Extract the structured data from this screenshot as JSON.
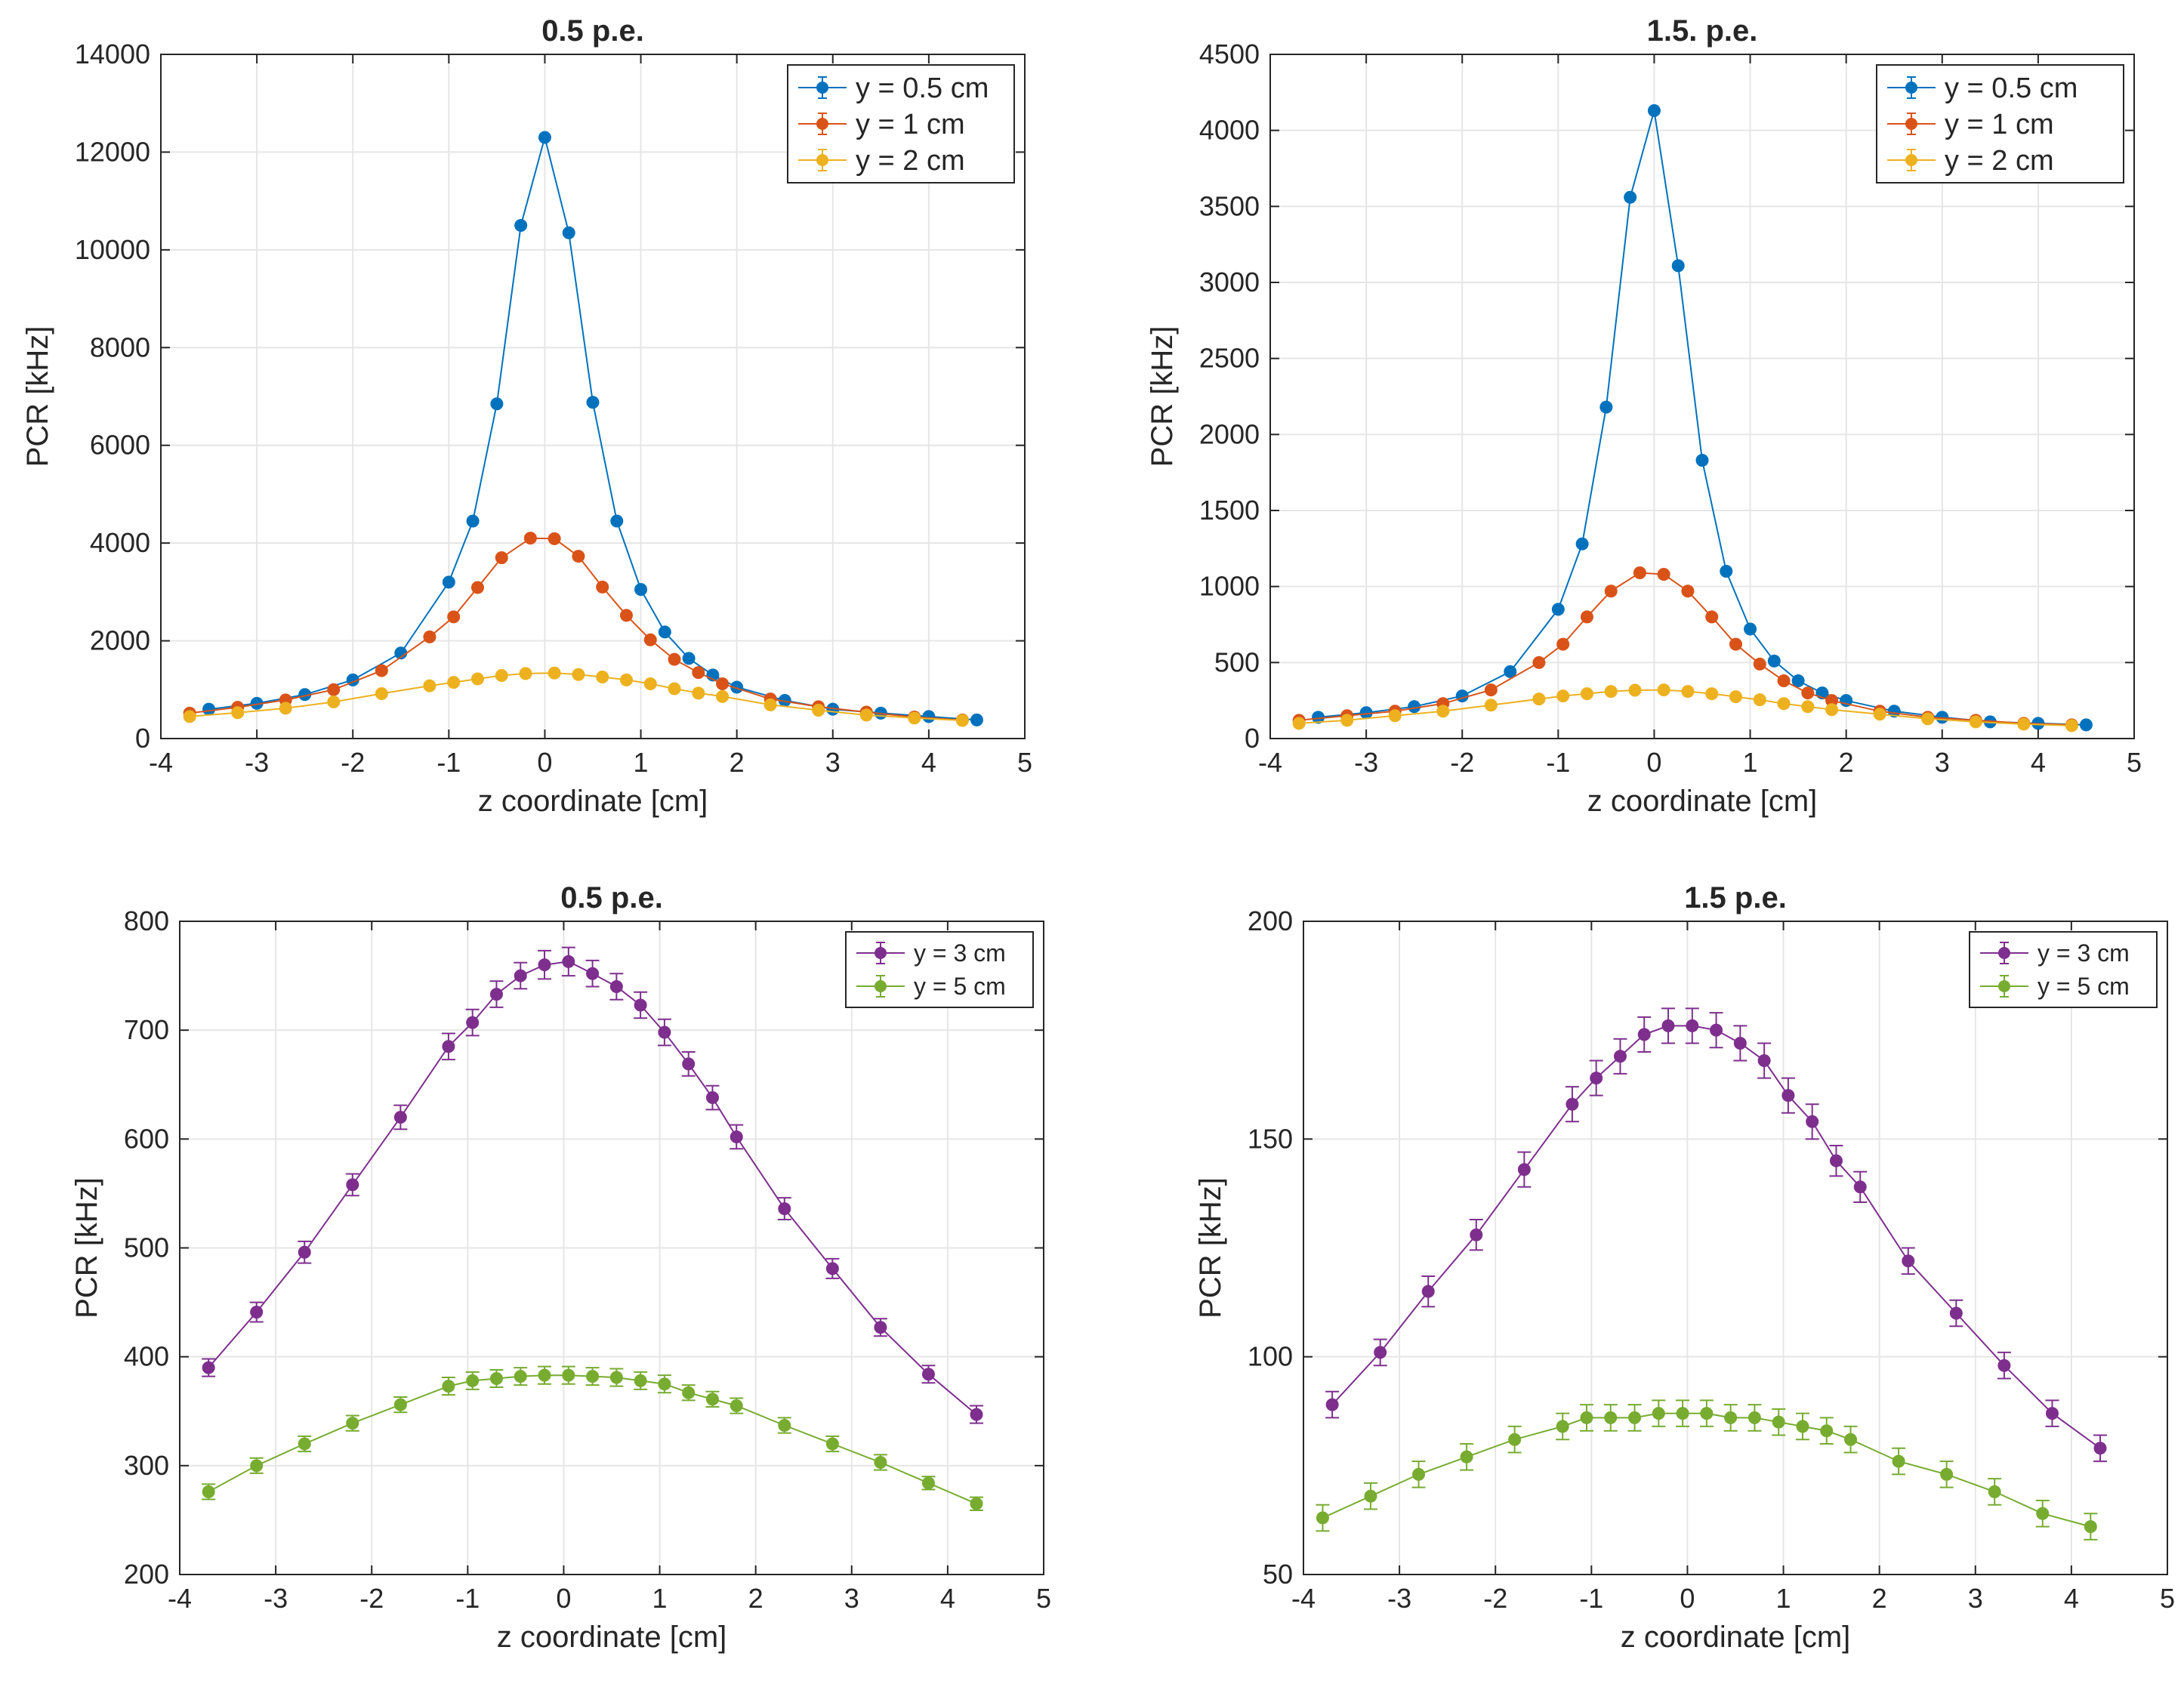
{
  "colors": {
    "blue": "#0072BD",
    "orange": "#D95319",
    "yellow": "#EDB120",
    "purple": "#7E2F8E",
    "green": "#77AC30"
  },
  "chart_data": [
    {
      "type": "line",
      "title": "0.5 p.e.",
      "xlabel": "z coordinate [cm]",
      "ylabel": "PCR [kHz]",
      "xlim": [
        -4,
        5
      ],
      "ylim": [
        0,
        14000
      ],
      "xticks": [
        -4,
        -3,
        -2,
        -1,
        0,
        1,
        2,
        3,
        4,
        5
      ],
      "yticks": [
        0,
        2000,
        4000,
        6000,
        8000,
        10000,
        12000,
        14000
      ],
      "grid": true,
      "legend_position": "top-right",
      "series": [
        {
          "name": "y = 0.5 cm",
          "color": "#0072BD",
          "x": [
            -3.5,
            -3.0,
            -2.5,
            -2.0,
            -1.5,
            -1.0,
            -0.75,
            -0.5,
            -0.25,
            0.0,
            0.25,
            0.5,
            0.75,
            1.0,
            1.25,
            1.5,
            1.75,
            2.0,
            2.5,
            3.0,
            3.5,
            4.0,
            4.5
          ],
          "y": [
            600,
            720,
            900,
            1200,
            1750,
            3200,
            4450,
            6850,
            10500,
            12300,
            10350,
            6880,
            4450,
            3050,
            2180,
            1640,
            1300,
            1050,
            780,
            600,
            520,
            450,
            380
          ],
          "err": []
        },
        {
          "name": "y = 1 cm",
          "color": "#D95319",
          "x": [
            -3.7,
            -3.2,
            -2.7,
            -2.2,
            -1.7,
            -1.2,
            -0.95,
            -0.7,
            -0.45,
            -0.15,
            0.1,
            0.35,
            0.6,
            0.85,
            1.1,
            1.35,
            1.6,
            1.85,
            2.35,
            2.85,
            3.35,
            3.85,
            4.35
          ],
          "y": [
            520,
            640,
            790,
            1000,
            1390,
            2080,
            2490,
            3090,
            3700,
            4100,
            4090,
            3730,
            3100,
            2520,
            2020,
            1620,
            1350,
            1120,
            810,
            650,
            540,
            440,
            380
          ],
          "err": []
        },
        {
          "name": "y = 2 cm",
          "color": "#EDB120",
          "x": [
            -3.7,
            -3.2,
            -2.7,
            -2.2,
            -1.7,
            -1.2,
            -0.95,
            -0.7,
            -0.45,
            -0.2,
            0.1,
            0.35,
            0.6,
            0.85,
            1.1,
            1.35,
            1.6,
            1.85,
            2.35,
            2.85,
            3.35,
            3.85,
            4.35
          ],
          "y": [
            450,
            530,
            620,
            750,
            920,
            1080,
            1150,
            1220,
            1290,
            1330,
            1340,
            1310,
            1260,
            1200,
            1120,
            1020,
            930,
            860,
            690,
            580,
            480,
            420,
            370
          ],
          "err": []
        }
      ]
    },
    {
      "type": "line",
      "title": "1.5. p.e.",
      "xlabel": "z coordinate [cm]",
      "ylabel": "PCR [kHz]",
      "xlim": [
        -4,
        5
      ],
      "ylim": [
        0,
        4500
      ],
      "xticks": [
        -4,
        -3,
        -2,
        -1,
        0,
        1,
        2,
        3,
        4,
        5
      ],
      "yticks": [
        0,
        500,
        1000,
        1500,
        2000,
        2500,
        3000,
        3500,
        4000,
        4500
      ],
      "grid": true,
      "legend_position": "top-right",
      "series": [
        {
          "name": "y = 0.5 cm",
          "color": "#0072BD",
          "x": [
            -3.5,
            -3.0,
            -2.5,
            -2.0,
            -1.5,
            -1.0,
            -0.75,
            -0.5,
            -0.25,
            0.0,
            0.25,
            0.5,
            0.75,
            1.0,
            1.25,
            1.5,
            1.75,
            2.0,
            2.5,
            3.0,
            3.5,
            4.0,
            4.5
          ],
          "y": [
            140,
            170,
            210,
            280,
            440,
            850,
            1280,
            2180,
            3560,
            4130,
            3110,
            1830,
            1100,
            720,
            510,
            380,
            300,
            250,
            180,
            140,
            110,
            100,
            90
          ],
          "err": []
        },
        {
          "name": "y = 1 cm",
          "color": "#D95319",
          "x": [
            -3.7,
            -3.2,
            -2.7,
            -2.2,
            -1.7,
            -1.2,
            -0.95,
            -0.7,
            -0.45,
            -0.15,
            0.1,
            0.35,
            0.6,
            0.85,
            1.1,
            1.35,
            1.6,
            1.85,
            2.35,
            2.85,
            3.35,
            3.85,
            4.35
          ],
          "y": [
            120,
            150,
            180,
            230,
            320,
            500,
            620,
            800,
            970,
            1090,
            1080,
            970,
            800,
            620,
            490,
            380,
            300,
            250,
            180,
            140,
            120,
            100,
            90
          ],
          "err": []
        },
        {
          "name": "y = 2 cm",
          "color": "#EDB120",
          "x": [
            -3.7,
            -3.2,
            -2.7,
            -2.2,
            -1.7,
            -1.2,
            -0.95,
            -0.7,
            -0.45,
            -0.2,
            0.1,
            0.35,
            0.6,
            0.85,
            1.1,
            1.35,
            1.6,
            1.85,
            2.35,
            2.85,
            3.35,
            3.85,
            4.35
          ],
          "y": [
            100,
            120,
            150,
            180,
            220,
            260,
            280,
            295,
            310,
            318,
            320,
            310,
            295,
            275,
            255,
            230,
            210,
            190,
            160,
            130,
            110,
            95,
            85
          ],
          "err": []
        }
      ]
    },
    {
      "type": "line",
      "title": "0.5 p.e.",
      "xlabel": "z coordinate [cm]",
      "ylabel": "PCR [kHz]",
      "xlim": [
        -4,
        5
      ],
      "ylim": [
        200,
        800
      ],
      "xticks": [
        -4,
        -3,
        -2,
        -1,
        0,
        1,
        2,
        3,
        4,
        5
      ],
      "yticks": [
        200,
        300,
        400,
        500,
        600,
        700,
        800
      ],
      "grid": true,
      "legend_position": "top-right",
      "series": [
        {
          "name": "y = 3 cm",
          "color": "#7E2F8E",
          "x": [
            -3.7,
            -3.2,
            -2.7,
            -2.2,
            -1.7,
            -1.2,
            -0.95,
            -0.7,
            -0.45,
            -0.2,
            0.05,
            0.3,
            0.55,
            0.8,
            1.05,
            1.3,
            1.55,
            1.8,
            2.3,
            2.8,
            3.3,
            3.8,
            4.3
          ],
          "y": [
            390,
            441,
            496,
            558,
            620,
            685,
            707,
            733,
            750,
            760,
            763,
            752,
            740,
            723,
            698,
            669,
            638,
            602,
            536,
            481,
            427,
            384,
            347
          ],
          "err": [
            8,
            9,
            10,
            10,
            11,
            12,
            12,
            12,
            12,
            13,
            13,
            12,
            12,
            12,
            12,
            11,
            11,
            11,
            10,
            9,
            8,
            8,
            8
          ]
        },
        {
          "name": "y = 5 cm",
          "color": "#77AC30",
          "x": [
            -3.7,
            -3.2,
            -2.7,
            -2.2,
            -1.7,
            -1.2,
            -0.95,
            -0.7,
            -0.45,
            -0.2,
            0.05,
            0.3,
            0.55,
            0.8,
            1.05,
            1.3,
            1.55,
            1.8,
            2.3,
            2.8,
            3.3,
            3.8,
            4.3
          ],
          "y": [
            276,
            300,
            320,
            339,
            356,
            373,
            378,
            380,
            382,
            383,
            383,
            382,
            381,
            378,
            375,
            367,
            361,
            355,
            337,
            320,
            303,
            284,
            265
          ],
          "err": [
            7,
            7,
            7,
            7,
            7,
            8,
            8,
            8,
            8,
            8,
            8,
            8,
            8,
            8,
            8,
            7,
            7,
            7,
            7,
            7,
            7,
            6,
            6
          ]
        }
      ]
    },
    {
      "type": "line",
      "title": "1.5 p.e.",
      "xlabel": "z coordinate [cm]",
      "ylabel": "PCR [kHz]",
      "xlim": [
        -4,
        5
      ],
      "ylim": [
        50,
        200
      ],
      "xticks": [
        -4,
        -3,
        -2,
        -1,
        0,
        1,
        2,
        3,
        4,
        5
      ],
      "yticks": [
        50,
        100,
        150,
        200
      ],
      "grid": true,
      "legend_position": "top-right",
      "series": [
        {
          "name": "y = 3 cm",
          "color": "#7E2F8E",
          "x": [
            -3.7,
            -3.2,
            -2.7,
            -2.2,
            -1.7,
            -1.2,
            -0.95,
            -0.7,
            -0.45,
            -0.2,
            0.05,
            0.3,
            0.55,
            0.8,
            1.05,
            1.3,
            1.55,
            1.8,
            2.3,
            2.8,
            3.3,
            3.8,
            4.3
          ],
          "y": [
            89,
            101,
            115,
            128,
            143,
            158,
            164,
            169,
            174,
            176,
            176,
            175,
            172,
            168,
            160,
            154,
            145,
            139,
            122,
            110,
            98,
            87,
            79
          ],
          "err": [
            3,
            3,
            3.5,
            3.5,
            4,
            4,
            4,
            4,
            4,
            4,
            4,
            4,
            4,
            4,
            4,
            4,
            3.5,
            3.5,
            3,
            3,
            3,
            3,
            3
          ]
        },
        {
          "name": "y = 5 cm",
          "color": "#77AC30",
          "x": [
            -3.8,
            -3.3,
            -2.8,
            -2.3,
            -1.8,
            -1.3,
            -1.05,
            -0.8,
            -0.55,
            -0.3,
            -0.05,
            0.2,
            0.45,
            0.7,
            0.95,
            1.2,
            1.45,
            1.7,
            2.2,
            2.7,
            3.2,
            3.7,
            4.2
          ],
          "y": [
            63,
            68,
            73,
            77,
            81,
            84,
            86,
            86,
            86,
            87,
            87,
            87,
            86,
            86,
            85,
            84,
            83,
            81,
            76,
            73,
            69,
            64,
            61
          ],
          "err": [
            3,
            3,
            3,
            3,
            3,
            3,
            3,
            3,
            3,
            3,
            3,
            3,
            3,
            3,
            3,
            3,
            3,
            3,
            3,
            3,
            3,
            3,
            3
          ]
        }
      ]
    }
  ]
}
